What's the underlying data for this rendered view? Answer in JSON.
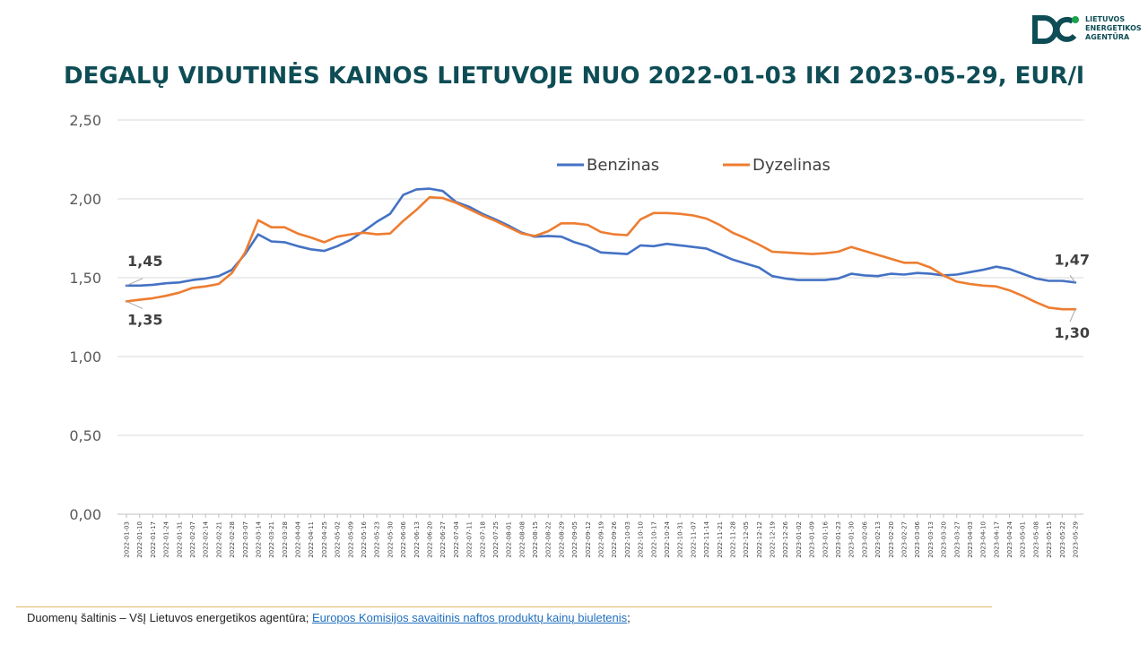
{
  "logo": {
    "icon": "lea-logo-icon",
    "lines": [
      "LIETUVOS",
      "ENERGETIKOS",
      "AGENTŪRA"
    ],
    "color": "#0e4d55",
    "accent": "#1aa34a"
  },
  "footer": {
    "source_prefix": "Duomenų šaltinis – VšĮ Lietuvos energetikos agentūra; ",
    "link_text": "Europos Komisijos savaitinis naftos produktų kainų biuletenis",
    "suffix": ";"
  },
  "chart_data": {
    "type": "line",
    "title": "DEGALŲ VIDUTINĖS KAINOS LIETUVOJE NUO 2022-01-03 IKI 2023-05-29, EUR/l",
    "xlabel": "",
    "ylabel": "",
    "ylim": [
      0,
      2.5
    ],
    "y_ticks": [
      "0,00",
      "0,50",
      "1,00",
      "1,50",
      "2,00",
      "2,50"
    ],
    "grid": true,
    "legend_position": "top-center",
    "x": [
      "2022-01-03",
      "2022-01-10",
      "2022-01-17",
      "2022-01-24",
      "2022-01-31",
      "2022-02-07",
      "2022-02-14",
      "2022-02-21",
      "2022-02-28",
      "2022-03-07",
      "2022-03-14",
      "2022-03-21",
      "2022-03-28",
      "2022-04-04",
      "2022-04-11",
      "2022-04-25",
      "2022-05-02",
      "2022-05-09",
      "2022-05-16",
      "2022-05-23",
      "2022-05-30",
      "2022-06-06",
      "2022-06-13",
      "2022-06-20",
      "2022-06-27",
      "2022-07-04",
      "2022-07-11",
      "2022-07-18",
      "2022-07-25",
      "2022-08-01",
      "2022-08-08",
      "2022-08-15",
      "2022-08-22",
      "2022-08-29",
      "2022-09-05",
      "2022-09-12",
      "2022-09-19",
      "2022-09-26",
      "2022-10-03",
      "2022-10-10",
      "2022-10-17",
      "2022-10-24",
      "2022-10-31",
      "2022-11-07",
      "2022-11-14",
      "2022-11-21",
      "2022-11-28",
      "2022-12-05",
      "2022-12-12",
      "2022-12-19",
      "2022-12-26",
      "2023-01-02",
      "2023-01-09",
      "2023-01-16",
      "2023-01-23",
      "2023-01-30",
      "2023-02-06",
      "2023-02-13",
      "2023-02-20",
      "2023-02-27",
      "2023-03-06",
      "2023-03-13",
      "2023-03-20",
      "2023-03-27",
      "2023-04-03",
      "2023-04-10",
      "2023-04-17",
      "2023-04-24",
      "2023-05-01",
      "2023-05-08",
      "2023-05-15",
      "2023-05-22",
      "2023-05-29"
    ],
    "series": [
      {
        "name": "Benzinas",
        "color": "#4472c4",
        "values": [
          1.45,
          1.45,
          1.455,
          1.465,
          1.47,
          1.485,
          1.495,
          1.51,
          1.55,
          1.65,
          1.775,
          1.73,
          1.725,
          1.7,
          1.68,
          1.67,
          1.7,
          1.74,
          1.795,
          1.855,
          1.905,
          2.025,
          2.06,
          2.065,
          2.05,
          1.98,
          1.95,
          1.905,
          1.87,
          1.83,
          1.785,
          1.76,
          1.765,
          1.76,
          1.725,
          1.7,
          1.66,
          1.655,
          1.65,
          1.705,
          1.7,
          1.715,
          1.705,
          1.695,
          1.685,
          1.65,
          1.615,
          1.59,
          1.565,
          1.51,
          1.495,
          1.485,
          1.485,
          1.485,
          1.495,
          1.525,
          1.515,
          1.51,
          1.525,
          1.52,
          1.53,
          1.525,
          1.515,
          1.52,
          1.535,
          1.55,
          1.57,
          1.555,
          1.525,
          1.495,
          1.48,
          1.48,
          1.47
        ]
      },
      {
        "name": "Dyzelinas",
        "color": "#ed7d31",
        "values": [
          1.35,
          1.36,
          1.37,
          1.385,
          1.405,
          1.435,
          1.445,
          1.46,
          1.53,
          1.66,
          1.865,
          1.82,
          1.82,
          1.78,
          1.755,
          1.725,
          1.76,
          1.775,
          1.785,
          1.775,
          1.78,
          1.86,
          1.93,
          2.01,
          2.005,
          1.975,
          1.935,
          1.895,
          1.86,
          1.82,
          1.78,
          1.765,
          1.795,
          1.845,
          1.845,
          1.835,
          1.79,
          1.775,
          1.77,
          1.87,
          1.91,
          1.91,
          1.905,
          1.895,
          1.875,
          1.835,
          1.785,
          1.75,
          1.71,
          1.665,
          1.66,
          1.655,
          1.65,
          1.655,
          1.665,
          1.695,
          1.67,
          1.645,
          1.62,
          1.595,
          1.595,
          1.565,
          1.515,
          1.475,
          1.46,
          1.45,
          1.445,
          1.42,
          1.385,
          1.345,
          1.31,
          1.3,
          1.3
        ]
      }
    ],
    "annotations": [
      {
        "series": "Benzinas",
        "point": "start",
        "text": "1,45"
      },
      {
        "series": "Dyzelinas",
        "point": "start",
        "text": "1,35"
      },
      {
        "series": "Benzinas",
        "point": "end",
        "text": "1,47"
      },
      {
        "series": "Dyzelinas",
        "point": "end",
        "text": "1,30"
      }
    ]
  }
}
